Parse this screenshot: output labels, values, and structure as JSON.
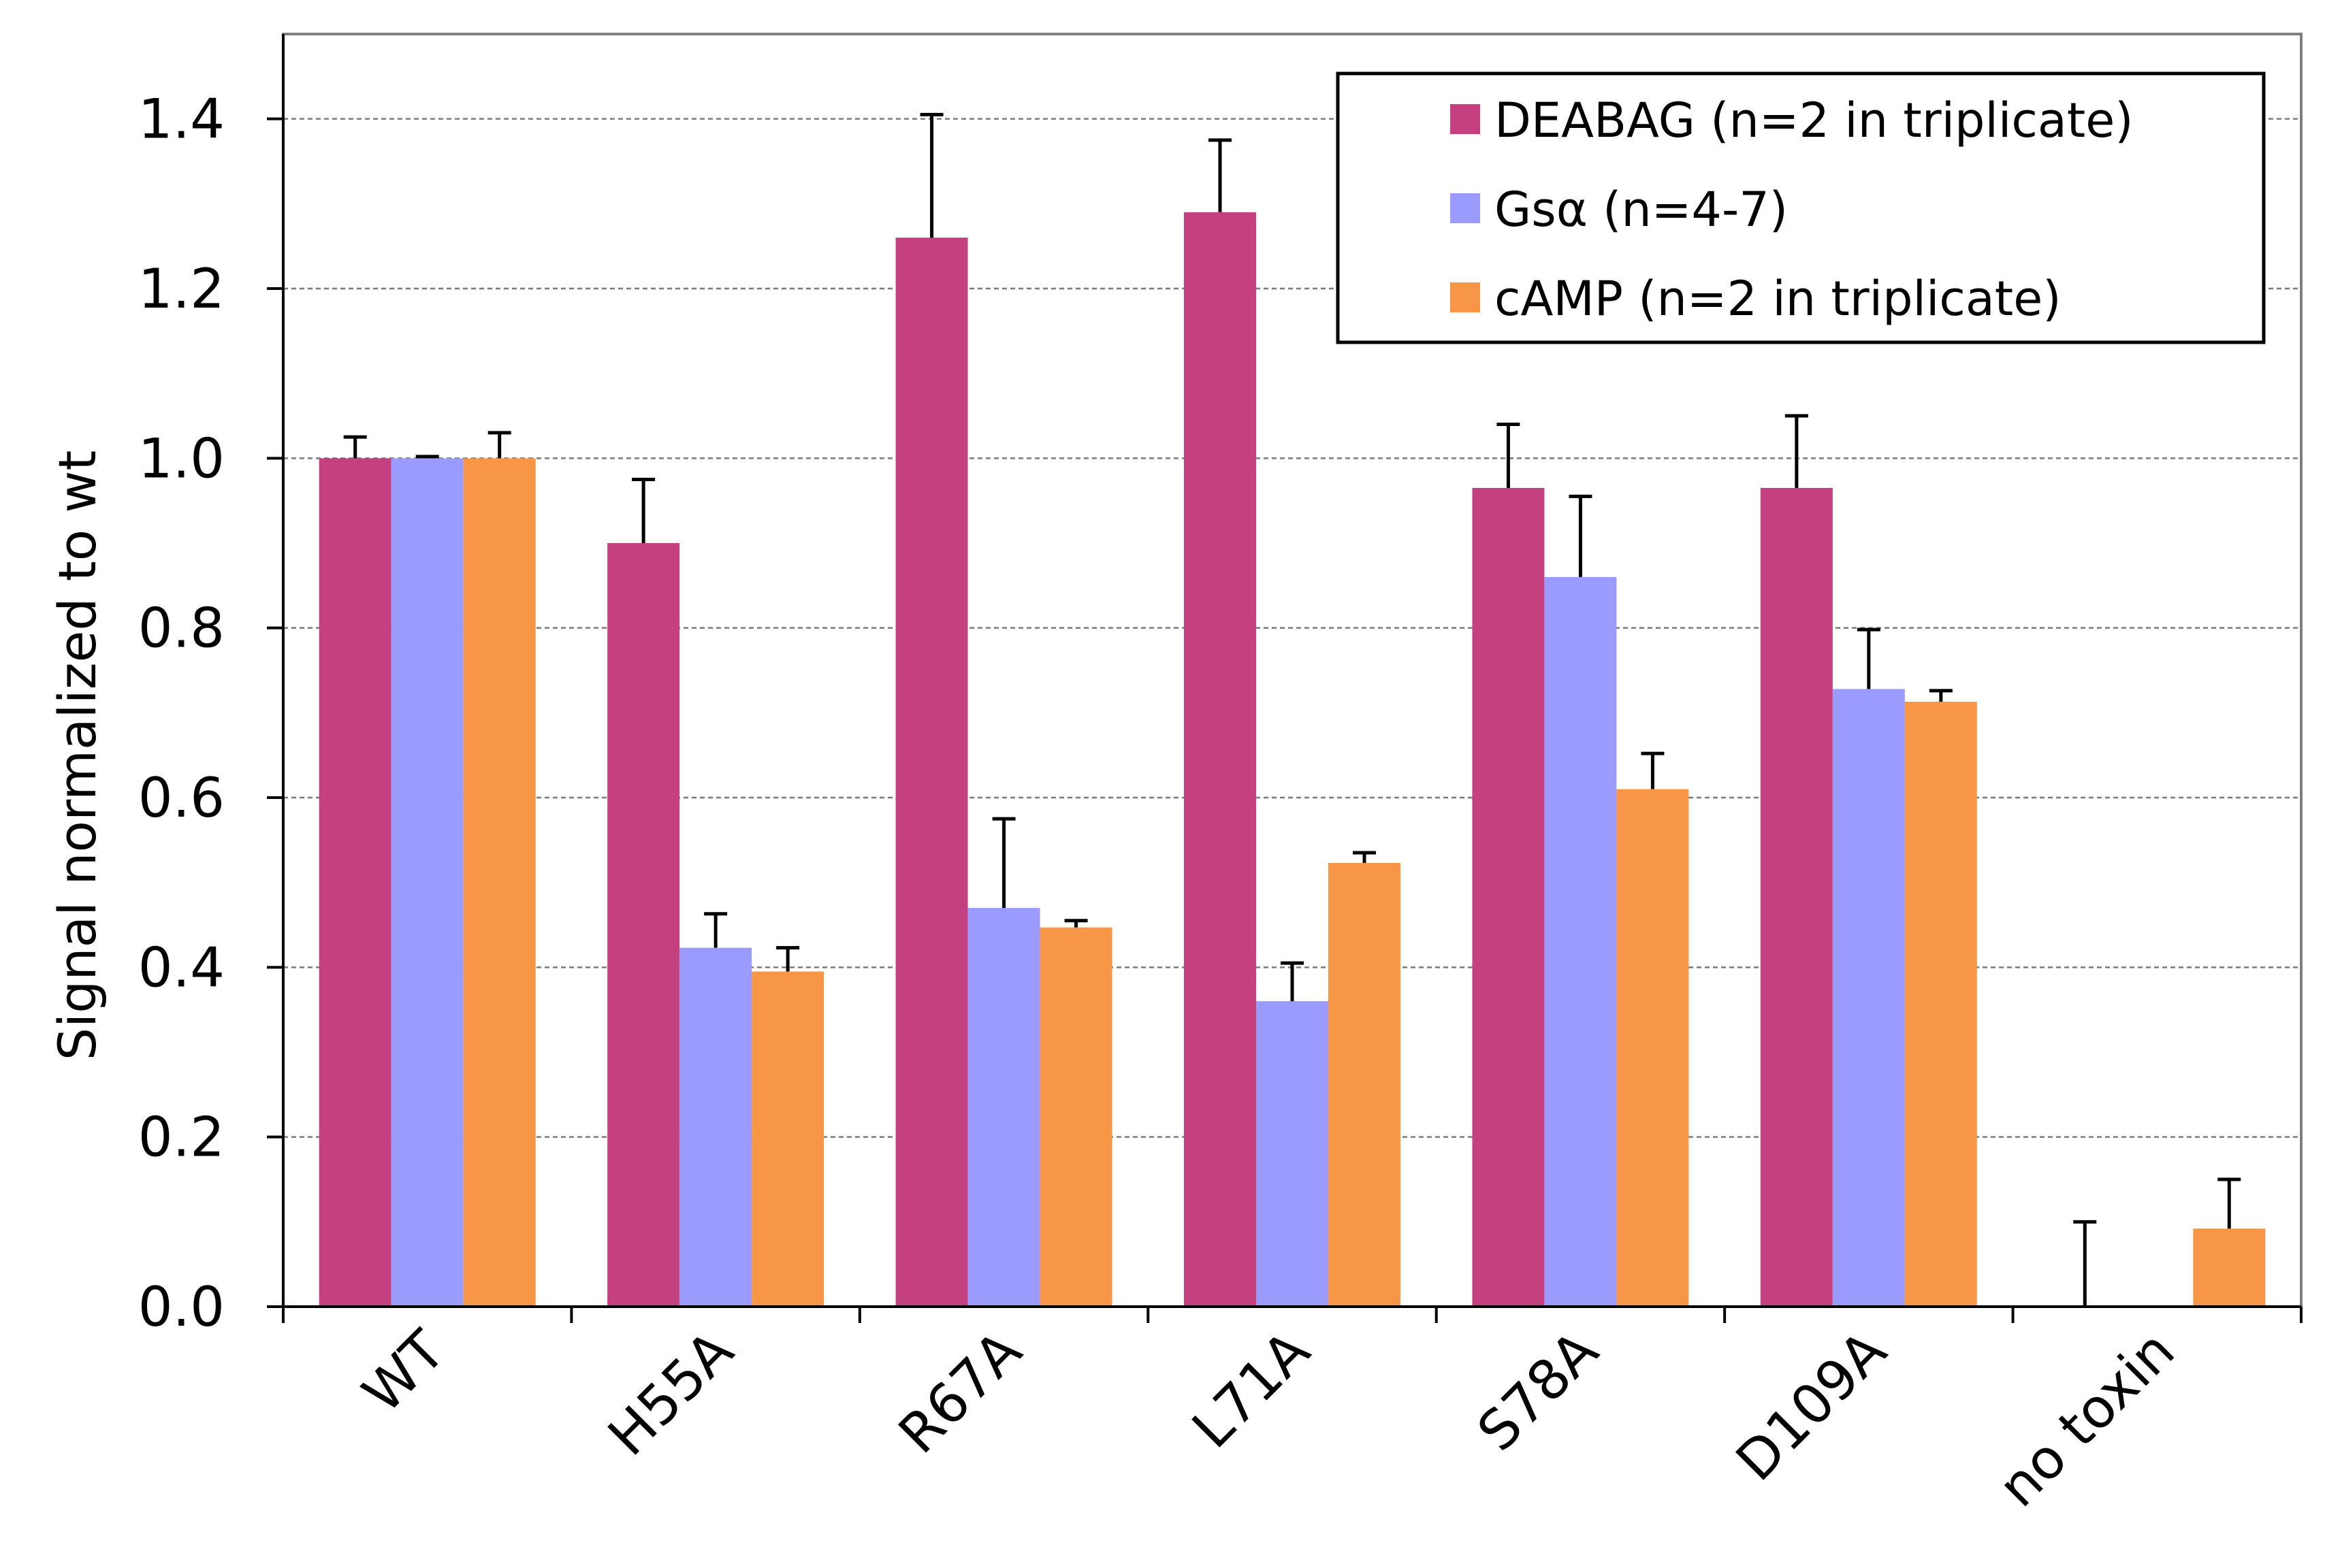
{
  "chart_data": {
    "type": "bar",
    "title": "",
    "xlabel": "",
    "ylabel": "Signal normalized to wt",
    "ylim": [
      0,
      1.5
    ],
    "yticks": [
      "0.0",
      "0.2",
      "0.4",
      "0.6",
      "0.8",
      "1.0",
      "1.2",
      "1.4"
    ],
    "grid": true,
    "legend_position": "top-right",
    "categories": [
      "WT",
      "H55A",
      "R67A",
      "L71A",
      "S78A",
      "D109A",
      "no toxin"
    ],
    "series": [
      {
        "name": "DEABAG (n=2 in triplicate)",
        "color": "#c4407e",
        "values": [
          1.0,
          0.9,
          1.26,
          1.29,
          0.965,
          0.965,
          0.0
        ],
        "errors": [
          0.025,
          0.075,
          0.145,
          0.085,
          0.075,
          0.085,
          0.1
        ]
      },
      {
        "name": "Gsα (n=4-7)",
        "color": "#9b9bfd",
        "values": [
          1.0,
          0.423,
          0.47,
          0.36,
          0.86,
          0.728,
          null
        ],
        "errors": [
          0.002,
          0.04,
          0.105,
          0.045,
          0.095,
          0.07,
          null
        ]
      },
      {
        "name": "cAMP (n=2 in triplicate)",
        "color": "#f79646",
        "values": [
          1.0,
          0.395,
          0.447,
          0.523,
          0.61,
          0.713,
          0.092
        ],
        "errors": [
          0.03,
          0.028,
          0.008,
          0.012,
          0.042,
          0.013,
          0.058
        ]
      }
    ]
  }
}
